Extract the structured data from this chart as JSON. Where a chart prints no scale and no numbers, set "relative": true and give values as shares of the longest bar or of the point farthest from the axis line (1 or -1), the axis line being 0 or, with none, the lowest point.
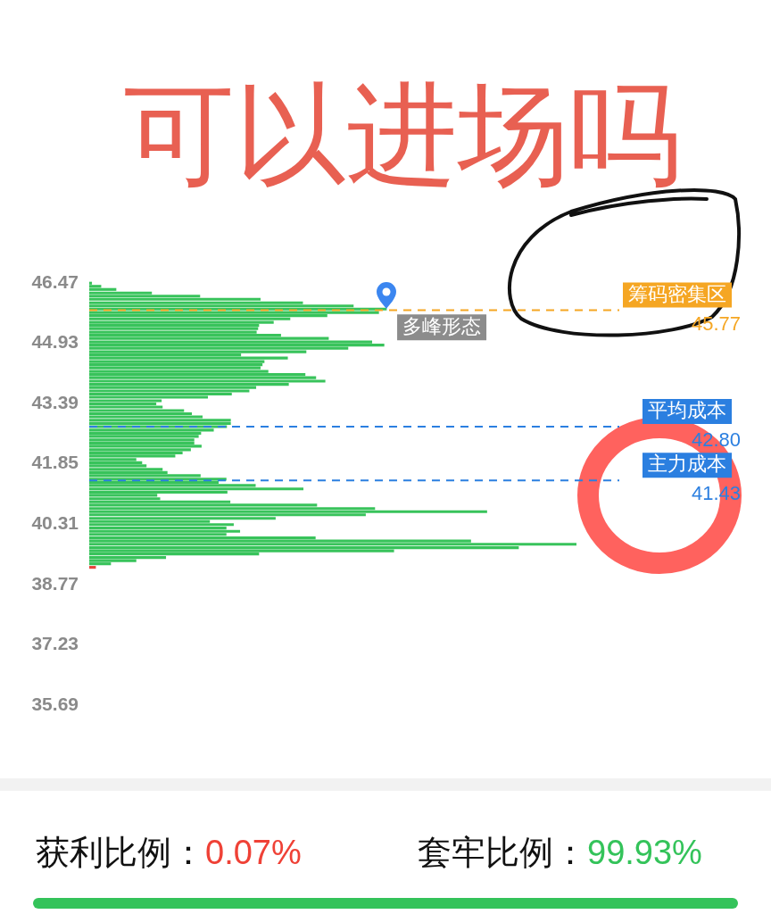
{
  "chart_data": {
    "type": "bar",
    "orientation": "horizontal",
    "relative": true,
    "x": [
      46.46,
      46.38,
      46.3,
      46.21,
      46.13,
      46.05,
      45.96,
      45.88,
      45.8,
      45.71,
      45.63,
      45.55,
      45.46,
      45.38,
      45.3,
      45.21,
      45.13,
      45.05,
      44.96,
      44.88,
      44.8,
      44.71,
      44.63,
      44.55,
      44.46,
      44.38,
      44.3,
      44.21,
      44.13,
      44.05,
      43.96,
      43.88,
      43.8,
      43.71,
      43.63,
      43.55,
      43.46,
      43.38,
      43.3,
      43.21,
      43.13,
      43.05,
      42.96,
      42.88,
      42.8,
      42.71,
      42.63,
      42.55,
      42.46,
      42.38,
      42.3,
      42.21,
      42.13,
      42.05,
      41.96,
      41.88,
      41.8,
      41.71,
      41.63,
      41.55,
      41.46,
      41.38,
      41.3,
      41.21,
      41.13,
      41.05,
      40.96,
      40.88,
      40.8,
      40.71,
      40.63,
      40.55,
      40.46,
      40.38,
      40.3,
      40.21,
      40.13,
      40.05,
      39.96,
      39.88,
      39.8,
      39.71,
      39.63,
      39.55,
      39.46,
      39.38,
      39.3,
      39.21
    ],
    "values": [
      0.005,
      0.024,
      0.055,
      0.128,
      0.227,
      0.351,
      0.438,
      0.542,
      0.61,
      0.594,
      0.488,
      0.412,
      0.378,
      0.348,
      0.346,
      0.343,
      0.393,
      0.491,
      0.58,
      0.605,
      0.531,
      0.445,
      0.311,
      0.407,
      0.359,
      0.355,
      0.351,
      0.367,
      0.443,
      0.465,
      0.484,
      0.409,
      0.342,
      0.328,
      0.292,
      0.243,
      0.148,
      0.137,
      0.15,
      0.194,
      0.21,
      0.232,
      0.29,
      0.29,
      0.282,
      0.255,
      0.229,
      0.224,
      0.215,
      0.215,
      0.23,
      0.208,
      0.191,
      0.176,
      0.096,
      0.108,
      0.117,
      0.15,
      0.16,
      0.228,
      0.281,
      0.265,
      0.341,
      0.439,
      0.283,
      0.139,
      0.145,
      0.289,
      0.467,
      0.586,
      0.816,
      0.567,
      0.382,
      0.247,
      0.296,
      0.281,
      0.309,
      0.281,
      0.464,
      0.783,
      1,
      0.881,
      0.625,
      0.348,
      0.157,
      0.096,
      0.044,
      0.013
    ],
    "colors": [
      "#38c35b",
      "#38c35b",
      "#38c35b",
      "#38c35b",
      "#38c35b",
      "#38c35b",
      "#38c35b",
      "#38c35b",
      "#38c35b",
      "#38c35b",
      "#38c35b",
      "#38c35b",
      "#38c35b",
      "#38c35b",
      "#38c35b",
      "#38c35b",
      "#38c35b",
      "#38c35b",
      "#38c35b",
      "#38c35b",
      "#38c35b",
      "#38c35b",
      "#38c35b",
      "#38c35b",
      "#38c35b",
      "#38c35b",
      "#38c35b",
      "#38c35b",
      "#38c35b",
      "#38c35b",
      "#38c35b",
      "#38c35b",
      "#38c35b",
      "#38c35b",
      "#38c35b",
      "#38c35b",
      "#38c35b",
      "#38c35b",
      "#38c35b",
      "#38c35b",
      "#38c35b",
      "#38c35b",
      "#38c35b",
      "#38c35b",
      "#38c35b",
      "#38c35b",
      "#38c35b",
      "#38c35b",
      "#38c35b",
      "#38c35b",
      "#38c35b",
      "#38c35b",
      "#38c35b",
      "#38c35b",
      "#38c35b",
      "#38c35b",
      "#38c35b",
      "#38c35b",
      "#38c35b",
      "#38c35b",
      "#38c35b",
      "#38c35b",
      "#38c35b",
      "#38c35b",
      "#38c35b",
      "#38c35b",
      "#38c35b",
      "#38c35b",
      "#38c35b",
      "#38c35b",
      "#38c35b",
      "#38c35b",
      "#38c35b",
      "#38c35b",
      "#38c35b",
      "#38c35b",
      "#38c35b",
      "#38c35b",
      "#38c35b",
      "#38c35b",
      "#38c35b",
      "#38c35b",
      "#38c35b",
      "#38c35b",
      "#38c35b",
      "#38c35b",
      "#38c35b",
      "#e8453c"
    ],
    "ylim": [
      35.69,
      46.47
    ],
    "yticks": [
      46.47,
      44.93,
      43.39,
      41.85,
      40.31,
      38.77,
      37.23,
      35.69
    ],
    "ref_lines": [
      {
        "axis": "y",
        "value": 45.77,
        "label": "筹码密集区",
        "color": "#f5a623",
        "line_style": "dashed"
      },
      {
        "axis": "y",
        "value": 42.8,
        "label": "平均成本",
        "color": "#2b7fe0",
        "line_style": "dashed"
      },
      {
        "axis": "y",
        "value": 41.43,
        "label": "主力成本",
        "color": "#2b7fe0",
        "line_style": "dashed"
      }
    ],
    "annotations": [
      "可以进场吗",
      {
        "text": "多峰形态",
        "x": 0.61,
        "y": 45.8
      },
      "45.77",
      "42.80",
      "41.43",
      "获利比例：",
      "0.07%",
      "套牢比例：",
      "99.93%"
    ]
  }
}
